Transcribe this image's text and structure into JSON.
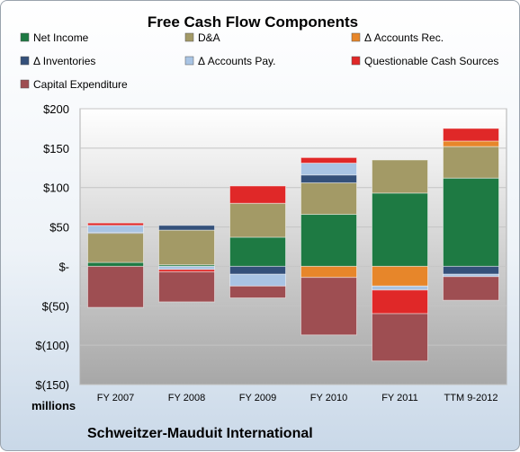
{
  "chart_data": {
    "type": "bar",
    "stacked": true,
    "title": "Free Cash Flow Components",
    "categories": [
      "FY 2007",
      "FY 2008",
      "FY 2009",
      "FY 2010",
      "FY 2011",
      "TTM 9-2012"
    ],
    "ylim": [
      -150,
      200
    ],
    "yticks": [
      200,
      150,
      100,
      50,
      0,
      -50,
      -100,
      -150
    ],
    "ytick_labels": [
      "$200",
      "$150",
      "$100",
      "$50",
      "$-",
      "$(50)",
      "$(100)",
      "$(150)"
    ],
    "units_label": "millions",
    "legend": "top",
    "series": [
      {
        "name": "Net Income",
        "color": "#1e7a43",
        "values": [
          5,
          2,
          37,
          66,
          93,
          112
        ]
      },
      {
        "name": "D&A",
        "color": "#a39a66",
        "values": [
          37,
          44,
          43,
          40,
          42,
          40
        ]
      },
      {
        "name": "Δ Accounts Rec.",
        "color": "#e7862a",
        "values": [
          0,
          0,
          0,
          -14,
          -25,
          7
        ]
      },
      {
        "name": "Δ Inventories",
        "color": "#34507a",
        "values": [
          1,
          6,
          -10,
          10,
          0,
          -10
        ]
      },
      {
        "name": "Δ Accounts Pay.",
        "color": "#a9c4e4",
        "values": [
          9,
          -4,
          -15,
          15,
          -5,
          -3
        ]
      },
      {
        "name": "Questionable Cash Sources",
        "color": "#e02828",
        "values": [
          3,
          -3,
          22,
          7,
          -30,
          16
        ]
      },
      {
        "name": "Capital Expenditure",
        "color": "#9e4e52",
        "values": [
          -52,
          -38,
          -15,
          -73,
          -60,
          -30
        ]
      }
    ]
  },
  "footer": {
    "company": "Schweitzer-Mauduit International"
  }
}
